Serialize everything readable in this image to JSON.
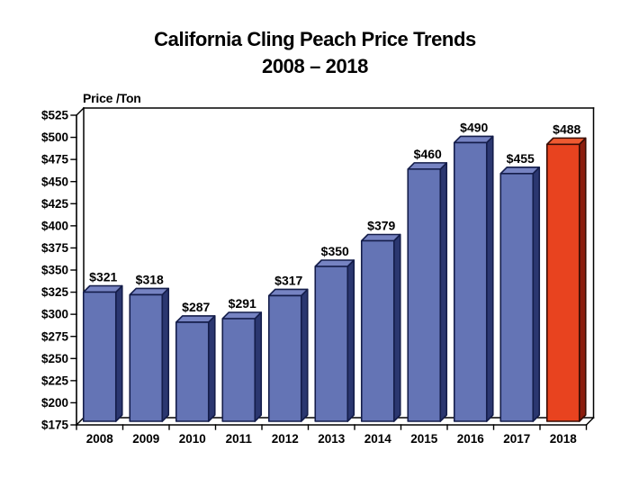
{
  "title": {
    "line1": "California Cling Peach Price Trends",
    "line2": "2008 – 2018"
  },
  "y_axis_title": "Price /Ton",
  "chart_data": {
    "type": "bar",
    "style": "3d-column",
    "title": "California Cling Peach Price Trends 2008 – 2018",
    "ylabel": "Price /Ton",
    "xlabel": "",
    "categories": [
      "2008",
      "2009",
      "2010",
      "2011",
      "2012",
      "2013",
      "2014",
      "2015",
      "2016",
      "2017",
      "2018"
    ],
    "values": [
      321,
      318,
      287,
      291,
      317,
      350,
      379,
      460,
      490,
      455,
      488
    ],
    "data_labels": [
      "$321",
      "$318",
      "$287",
      "$291",
      "$317",
      "$350",
      "$379",
      "$460",
      "$490",
      "$455",
      "$488"
    ],
    "ylim": [
      175,
      525
    ],
    "ytick_step": 25,
    "ytick_labels": [
      "$175",
      "$200",
      "$225",
      "$250",
      "$275",
      "$300",
      "$325",
      "$350",
      "$375",
      "$400",
      "$425",
      "$450",
      "$475",
      "$500",
      "$525"
    ],
    "grid": false,
    "legend": "none",
    "highlight_index": 10
  },
  "colors": {
    "text": "#000000",
    "frame": "#000000",
    "bar_front": "#6474B5",
    "bar_top": "#7683C2",
    "bar_side": "#2B3770",
    "bar_outline": "#141D4A",
    "highlight_front": "#E8431F",
    "highlight_top": "#EE5A31",
    "highlight_side": "#8C1D0E",
    "highlight_outline": "#380C04"
  }
}
